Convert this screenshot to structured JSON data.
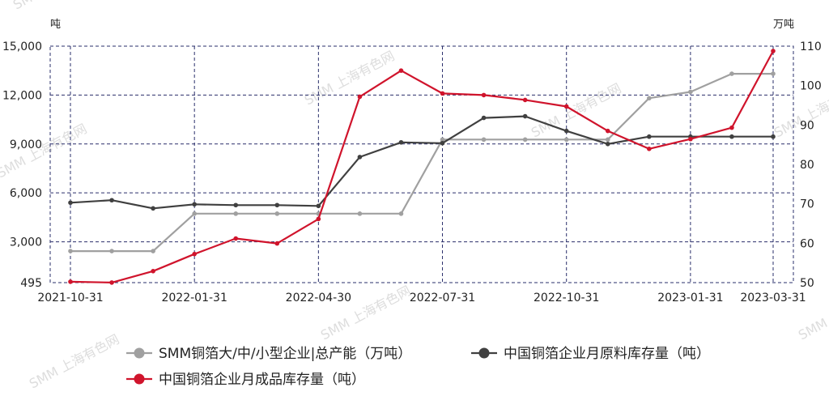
{
  "watermark": "SMM 上海有色网",
  "chart_data": {
    "type": "line",
    "y_left_unit": "吨",
    "y_right_unit": "万吨",
    "y_left_ticks": [
      "15,000",
      "12,000",
      "9,000",
      "6,000",
      "3,000",
      "495"
    ],
    "y_right_ticks": [
      "110",
      "100",
      "90",
      "80",
      "70",
      "60",
      "50"
    ],
    "y_left_range": [
      495,
      15000
    ],
    "y_right_range": [
      50,
      110
    ],
    "x_tick_labels": [
      "2021-10-31",
      "2022-01-31",
      "2022-04-30",
      "2022-07-31",
      "2022-10-31",
      "2023-01-31",
      "2023-03-31"
    ],
    "x": [
      "2021-10-31",
      "2021-11-30",
      "2021-12-31",
      "2022-01-31",
      "2022-02-28",
      "2022-03-31",
      "2022-04-30",
      "2022-05-31",
      "2022-06-30",
      "2022-07-31",
      "2022-08-31",
      "2022-09-30",
      "2022-10-31",
      "2022-11-30",
      "2022-12-31",
      "2023-01-31",
      "2023-02-28",
      "2023-03-31"
    ],
    "grid": true,
    "legend_position": "bottom",
    "series": [
      {
        "name": "SMM铜箔大/中/小型企业|总产能（万吨）",
        "axis": "right",
        "color": "#a0a0a0",
        "values": [
          58,
          58,
          58,
          67.5,
          67.5,
          67.5,
          67.5,
          67.5,
          67.5,
          86.3,
          86.3,
          86.3,
          86.3,
          86.3,
          96.8,
          98.4,
          103,
          103
        ]
      },
      {
        "name": "中国铜箔企业月原料库存量（吨）",
        "axis": "left",
        "color": "#404040",
        "values": [
          5400,
          5550,
          5050,
          5300,
          5250,
          5250,
          5200,
          8200,
          9100,
          9050,
          10600,
          10700,
          9800,
          9000,
          9450,
          9450,
          9450,
          9450
        ]
      },
      {
        "name": "中国铜箔企业月成品库存量（吨）",
        "axis": "left",
        "color": "#d0142c",
        "values": [
          550,
          500,
          1200,
          2250,
          3200,
          2900,
          4400,
          11900,
          13500,
          12100,
          12000,
          11700,
          11300,
          9800,
          8700,
          9300,
          10000,
          14700
        ]
      }
    ]
  }
}
